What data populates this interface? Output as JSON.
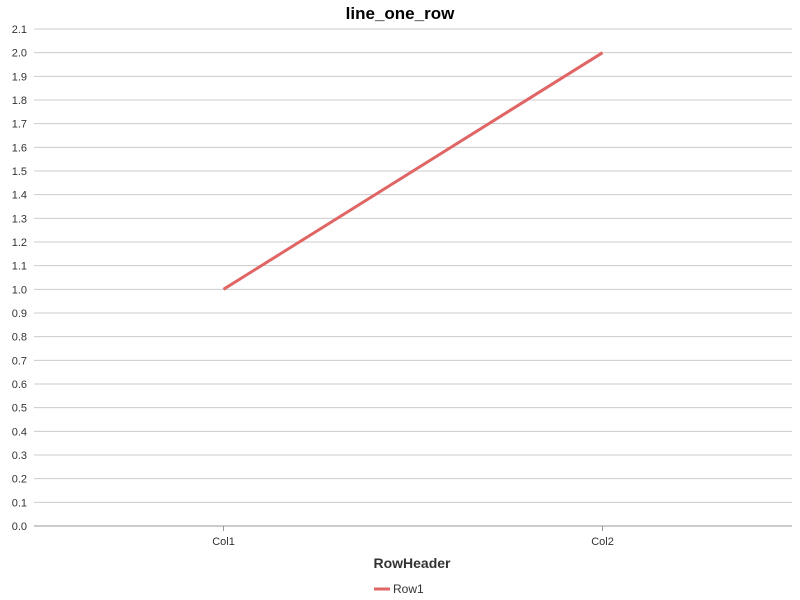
{
  "chart_data": {
    "type": "line",
    "title": "line_one_row",
    "xlabel": "RowHeader",
    "ylabel": "",
    "categories": [
      "Col1",
      "Col2"
    ],
    "series": [
      {
        "name": "Row1",
        "values": [
          1.0,
          2.0
        ],
        "color": "#e06666"
      }
    ],
    "ylim": [
      0.0,
      2.1
    ],
    "y_ticks": [
      "0.0",
      "0.1",
      "0.2",
      "0.3",
      "0.4",
      "0.5",
      "0.6",
      "0.7",
      "0.8",
      "0.9",
      "1.0",
      "1.1",
      "1.2",
      "1.3",
      "1.4",
      "1.5",
      "1.6",
      "1.7",
      "1.8",
      "1.9",
      "2.0",
      "2.1"
    ],
    "grid": true,
    "legend_position": "bottom-center"
  },
  "colors": {
    "grid": "#cccccc",
    "axis": "#999999",
    "text": "#333333"
  }
}
